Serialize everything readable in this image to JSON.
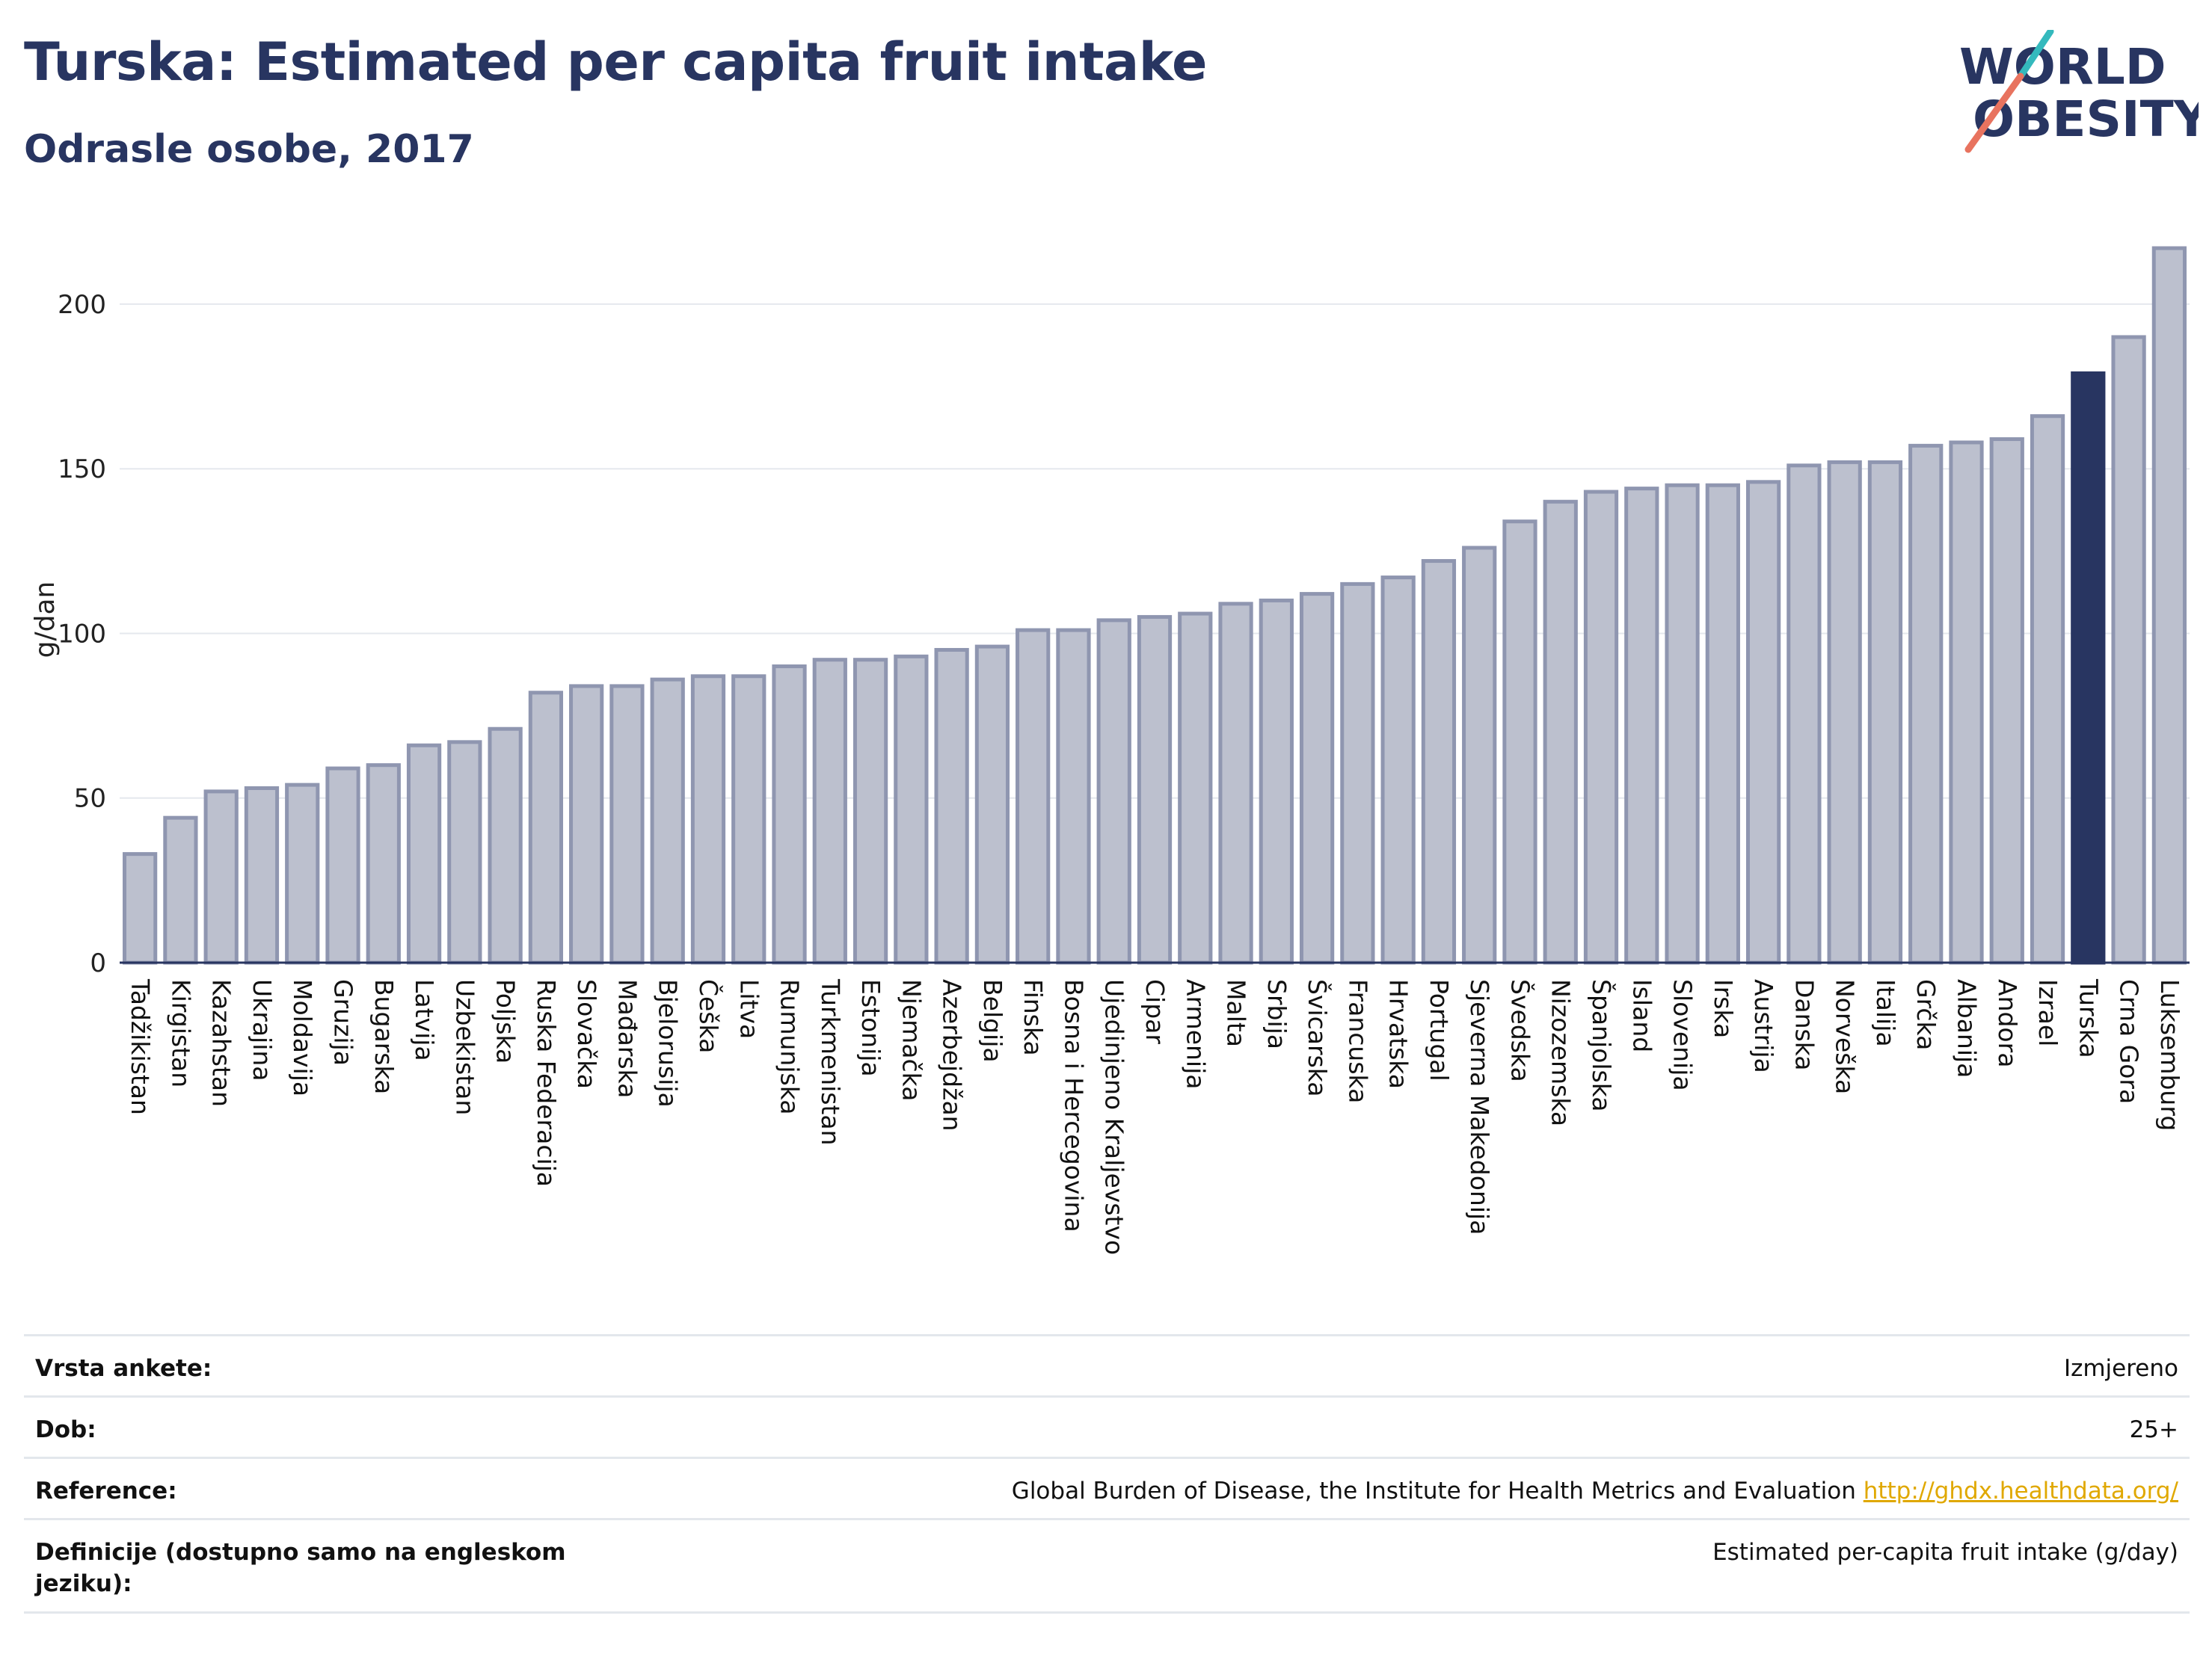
{
  "title": "Turska: Estimated per capita fruit intake",
  "subtitle": "Odrasle osobe, 2017",
  "logo": {
    "line1": "WORLD",
    "line2": "OBESITY",
    "colors": {
      "text": "#283561",
      "slash_top": "#34b9bd",
      "slash_bottom": "#e8735f"
    }
  },
  "colors": {
    "bar_fill": "#bcc0ce",
    "bar_stroke": "#8f96b0",
    "highlight": "#283561",
    "grid": "#e5e8ee"
  },
  "chart_data": {
    "type": "bar",
    "ylabel": "g/dan",
    "ylim": [
      0,
      222
    ],
    "yticks": [
      0,
      50,
      100,
      150,
      200
    ],
    "grid": true,
    "highlight": "Turska",
    "categories": [
      "Tadžikistan",
      "Kirgistan",
      "Kazahstan",
      "Ukrajina",
      "Moldavija",
      "Gruzija",
      "Bugarska",
      "Latvija",
      "Uzbekistan",
      "Poljska",
      "Ruska Federacija",
      "Slovačka",
      "Mađarska",
      "Bjelorusija",
      "Češka",
      "Litva",
      "Rumunjska",
      "Turkmenistan",
      "Estonija",
      "Njemačka",
      "Azerbejdžan",
      "Belgija",
      "Finska",
      "Bosna i Hercegovina",
      "Ujedinjeno Kraljevstvo",
      "Cipar",
      "Armenija",
      "Malta",
      "Srbija",
      "Švicarska",
      "Francuska",
      "Hrvatska",
      "Portugal",
      "Sjeverna Makedonija",
      "Švedska",
      "Nizozemska",
      "Španjolska",
      "Island",
      "Slovenija",
      "Irska",
      "Austrija",
      "Danska",
      "Norveška",
      "Italija",
      "Grčka",
      "Albanija",
      "Andora",
      "Izrael",
      "Turska",
      "Crna Gora",
      "Luksemburg"
    ],
    "values": [
      33,
      44,
      52,
      53,
      54,
      59,
      60,
      66,
      67,
      71,
      82,
      84,
      84,
      86,
      87,
      87,
      90,
      92,
      92,
      93,
      95,
      96,
      101,
      101,
      104,
      105,
      106,
      109,
      110,
      112,
      115,
      117,
      122,
      126,
      134,
      140,
      143,
      144,
      145,
      145,
      146,
      151,
      152,
      152,
      157,
      158,
      159,
      166,
      179,
      190,
      217
    ]
  },
  "meta": [
    {
      "key": "Vrsta ankete:",
      "value": "Izmjereno"
    },
    {
      "key": "Dob:",
      "value": "25+"
    },
    {
      "key": "Reference:",
      "value": "Global Burden of Disease, the Institute for Health Metrics and Evaluation",
      "link": "http://ghdx.healthdata.org/"
    },
    {
      "key": "Definicije (dostupno samo na engleskom jeziku):",
      "value": "Estimated per-capita fruit intake (g/day)"
    }
  ]
}
